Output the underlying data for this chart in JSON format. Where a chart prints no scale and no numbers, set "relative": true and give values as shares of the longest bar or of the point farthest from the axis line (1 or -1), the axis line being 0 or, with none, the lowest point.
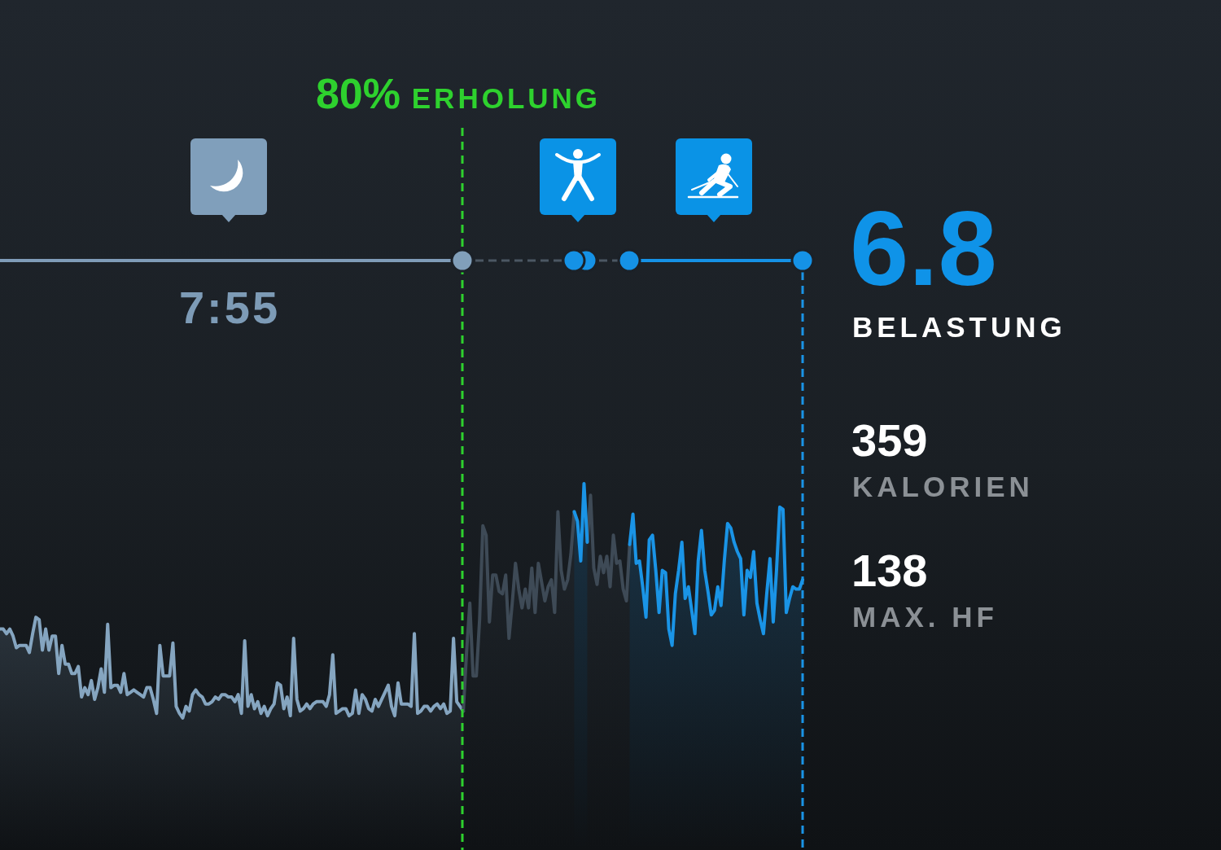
{
  "chart_data": [
    {
      "type": "area",
      "relative": true,
      "categories": [
        null,
        null,
        null,
        null,
        null,
        null,
        null,
        null,
        null,
        null,
        null,
        null,
        null,
        null,
        null,
        null,
        null,
        null,
        null,
        null,
        null,
        null,
        null,
        null,
        null,
        null,
        null,
        null,
        null,
        null,
        null,
        null,
        null,
        null,
        null,
        null,
        null,
        null,
        null,
        null,
        null,
        null,
        null,
        null,
        null,
        null,
        null,
        null,
        null,
        null,
        null,
        null,
        null,
        null,
        null,
        null,
        null,
        null,
        null,
        null,
        null,
        null,
        null,
        null,
        null,
        null,
        null,
        null,
        null,
        null,
        null,
        null,
        null,
        null,
        null,
        null,
        null,
        null,
        null,
        null,
        null,
        null,
        null,
        null,
        null,
        null,
        null,
        null,
        null,
        null,
        null,
        null,
        null,
        null,
        null,
        null,
        null,
        null,
        null,
        null,
        null,
        null,
        null,
        null,
        null,
        null,
        null,
        null,
        null,
        null,
        null,
        null,
        null,
        null,
        null,
        null,
        null,
        null,
        null,
        null,
        null,
        null,
        null,
        null,
        null,
        null,
        null,
        null,
        null,
        null,
        null,
        null,
        null,
        null,
        null,
        null,
        null,
        null,
        null,
        null,
        null,
        null,
        null,
        null,
        null,
        null,
        null,
        null,
        null,
        null,
        null,
        null,
        null,
        null,
        null,
        null,
        null,
        null,
        null,
        null,
        null,
        null,
        null,
        null,
        null,
        null,
        null,
        null,
        null,
        null,
        null,
        null,
        null,
        null,
        null,
        null,
        null,
        null,
        null,
        null,
        null,
        null,
        null,
        null,
        null,
        null,
        null,
        null,
        null,
        null,
        null,
        null,
        null,
        null,
        null,
        null,
        null,
        null,
        null,
        null,
        null,
        null,
        null,
        null,
        null,
        null,
        null,
        null,
        null,
        null,
        null,
        null,
        null,
        null,
        null,
        null,
        null,
        null,
        null,
        null,
        null,
        null,
        null,
        null,
        null,
        null,
        null,
        null,
        null,
        null,
        null,
        null,
        null,
        null,
        null,
        null,
        null,
        null,
        null,
        null,
        null,
        null,
        null,
        null,
        null,
        null,
        null
      ],
      "series": [
        {
          "color": "#85a5c0",
          "values": [
            0.38,
            0.38,
            0.36,
            0.38,
            0.35,
            0.3,
            0.31,
            0.31,
            0.31,
            0.28,
            0.36,
            0.43,
            0.42,
            0.29,
            0.38,
            0.29,
            0.35,
            0.35,
            0.19,
            0.31,
            0.23,
            0.23,
            0.19,
            0.19,
            0.22,
            0.09,
            0.13,
            0.1,
            0.16,
            0.08,
            0.13,
            0.21,
            0.11,
            0.4,
            0.13,
            0.14,
            0.14,
            0.11,
            0.19,
            0.1,
            0.11,
            0.12,
            0.11,
            0.1,
            0.09,
            0.13,
            0.13,
            0.08,
            0.02,
            0.31,
            0.18,
            0.18,
            0.18,
            0.32,
            0.05,
            0.02,
            0,
            0.05,
            0.03,
            0.1,
            0.12,
            0.1,
            0.09,
            0.06,
            0.06,
            0.07,
            0.09,
            0.08,
            0.1,
            0.1,
            0.09,
            0.09,
            0.07,
            0.1,
            0.02,
            0.33,
            0.05,
            0.1,
            0.04,
            0.07,
            0.02,
            0.05,
            0.01,
            0.04,
            0.06,
            0.15,
            0.14,
            0.04,
            0.09,
            0.01,
            0.34,
            0.08,
            0.03,
            0.04,
            0.06,
            0.04,
            0.06,
            0.07,
            0.07,
            0.07,
            0.05,
            0.1,
            0.27,
            0.02,
            0.03,
            0.04,
            0.04,
            0.01,
            0.02,
            0.12,
            0.02,
            0.1,
            0.08,
            0.04,
            0.03,
            0.08,
            0.05,
            0.08,
            0.11,
            0.14,
            0.05,
            0.01,
            0.15,
            0.06,
            0.06,
            0.06,
            0.05,
            0.36,
            0.02,
            0.03,
            0.05,
            0.05,
            0.03,
            0.05,
            0.06,
            0.04,
            0.06,
            0.02,
            0.03,
            0.34,
            0.07,
            0.05,
            0.03,
            null,
            null,
            null,
            null,
            null,
            null,
            null,
            null,
            null,
            null,
            null,
            null,
            null,
            null,
            null,
            null,
            null,
            null,
            null,
            null,
            null,
            null,
            null,
            null,
            null,
            null,
            null,
            null,
            null,
            null,
            null,
            null,
            null,
            null,
            null,
            null,
            null,
            null,
            null,
            null,
            null,
            null,
            null,
            null,
            null,
            null,
            null,
            null,
            null,
            null,
            null,
            null,
            null,
            null,
            null,
            null,
            null,
            null,
            null,
            null,
            null,
            null,
            null,
            null,
            null,
            null,
            null,
            null,
            null,
            null,
            null,
            null,
            null,
            null,
            null,
            null,
            null,
            null,
            null,
            null,
            null,
            null,
            null,
            null,
            null,
            null,
            null,
            null,
            null,
            null,
            null,
            null,
            null,
            null,
            null,
            null,
            null,
            null,
            null,
            null,
            null,
            null,
            null,
            null
          ]
        },
        {
          "color": "#3e4a56",
          "values": [
            null,
            null,
            null,
            null,
            null,
            null,
            null,
            null,
            null,
            null,
            null,
            null,
            null,
            null,
            null,
            null,
            null,
            null,
            null,
            null,
            null,
            null,
            null,
            null,
            null,
            null,
            null,
            null,
            null,
            null,
            null,
            null,
            null,
            null,
            null,
            null,
            null,
            null,
            null,
            null,
            null,
            null,
            null,
            null,
            null,
            null,
            null,
            null,
            null,
            null,
            null,
            null,
            null,
            null,
            null,
            null,
            null,
            null,
            null,
            null,
            null,
            null,
            null,
            null,
            null,
            null,
            null,
            null,
            null,
            null,
            null,
            null,
            null,
            null,
            null,
            null,
            null,
            null,
            null,
            null,
            null,
            null,
            null,
            null,
            null,
            null,
            null,
            null,
            null,
            null,
            null,
            null,
            null,
            null,
            null,
            null,
            null,
            null,
            null,
            null,
            null,
            null,
            null,
            null,
            null,
            null,
            null,
            null,
            null,
            null,
            null,
            null,
            null,
            null,
            null,
            null,
            null,
            null,
            null,
            null,
            null,
            null,
            null,
            null,
            null,
            null,
            null,
            null,
            null,
            null,
            null,
            null,
            null,
            null,
            null,
            null,
            null,
            null,
            null,
            null,
            null,
            null,
            0.03,
            0.28,
            0.49,
            0.18,
            0.18,
            0.42,
            0.82,
            0.78,
            0.41,
            0.61,
            0.61,
            0.54,
            0.53,
            0.61,
            0.34,
            0.49,
            0.66,
            0.55,
            0.47,
            0.55,
            0.47,
            0.64,
            0.45,
            0.66,
            0.58,
            0.5,
            0.56,
            0.59,
            0.45,
            0.88,
            0.63,
            0.55,
            0.59,
            0.7,
            0.88,
            null,
            null,
            null,
            null,
            null,
            null,
            null,
            null,
            null,
            null,
            null,
            null,
            null,
            null,
            null,
            null,
            null,
            null,
            null,
            null,
            null,
            null,
            null,
            null,
            null,
            null,
            null,
            null,
            null,
            null,
            null,
            null,
            null,
            null,
            null,
            null,
            null,
            null,
            null,
            null,
            null,
            null,
            null,
            null,
            null,
            null,
            null,
            null,
            null,
            null,
            null,
            null,
            null,
            null,
            null,
            null,
            null,
            null,
            null,
            null,
            null,
            null,
            null,
            null,
            null,
            null,
            null,
            null,
            null,
            null
          ]
        },
        {
          "color": "#3e4a56",
          "values": [
            null,
            null,
            null,
            null,
            null,
            null,
            null,
            null,
            null,
            null,
            null,
            null,
            null,
            null,
            null,
            null,
            null,
            null,
            null,
            null,
            null,
            null,
            null,
            null,
            null,
            null,
            null,
            null,
            null,
            null,
            null,
            null,
            null,
            null,
            null,
            null,
            null,
            null,
            null,
            null,
            null,
            null,
            null,
            null,
            null,
            null,
            null,
            null,
            null,
            null,
            null,
            null,
            null,
            null,
            null,
            null,
            null,
            null,
            null,
            null,
            null,
            null,
            null,
            null,
            null,
            null,
            null,
            null,
            null,
            null,
            null,
            null,
            null,
            null,
            null,
            null,
            null,
            null,
            null,
            null,
            null,
            null,
            null,
            null,
            null,
            null,
            null,
            null,
            null,
            null,
            null,
            null,
            null,
            null,
            null,
            null,
            null,
            null,
            null,
            null,
            null,
            null,
            null,
            null,
            null,
            null,
            null,
            null,
            null,
            null,
            null,
            null,
            null,
            null,
            null,
            null,
            null,
            null,
            null,
            null,
            null,
            null,
            null,
            null,
            null,
            null,
            null,
            null,
            null,
            null,
            null,
            null,
            null,
            null,
            null,
            null,
            null,
            null,
            null,
            null,
            null,
            null,
            null,
            null,
            null,
            null,
            null,
            null,
            null,
            null,
            null,
            null,
            null,
            null,
            null,
            null,
            null,
            null,
            null,
            null,
            null,
            null,
            null,
            null,
            null,
            null,
            null,
            null,
            null,
            null,
            null,
            null,
            null,
            null,
            null,
            null,
            null,
            null,
            null,
            null,
            0.75,
            0.95,
            0.64,
            0.57,
            0.69,
            0.62,
            0.69,
            0.56,
            0.78,
            0.66,
            0.67,
            0.55,
            0.5,
            0.74,
            null,
            null,
            null,
            null,
            null,
            null,
            null,
            null,
            null,
            null,
            null,
            null,
            null,
            null,
            null,
            null,
            null,
            null,
            null,
            null,
            null,
            null,
            null,
            null,
            null,
            null,
            null,
            null,
            null,
            null,
            null,
            null,
            null,
            null,
            null,
            null,
            null,
            null,
            null,
            null,
            null,
            null,
            null,
            null,
            null,
            null,
            null,
            null,
            null,
            null,
            null,
            null,
            null
          ]
        },
        {
          "color": "#1a94e6",
          "values": [
            null,
            null,
            null,
            null,
            null,
            null,
            null,
            null,
            null,
            null,
            null,
            null,
            null,
            null,
            null,
            null,
            null,
            null,
            null,
            null,
            null,
            null,
            null,
            null,
            null,
            null,
            null,
            null,
            null,
            null,
            null,
            null,
            null,
            null,
            null,
            null,
            null,
            null,
            null,
            null,
            null,
            null,
            null,
            null,
            null,
            null,
            null,
            null,
            null,
            null,
            null,
            null,
            null,
            null,
            null,
            null,
            null,
            null,
            null,
            null,
            null,
            null,
            null,
            null,
            null,
            null,
            null,
            null,
            null,
            null,
            null,
            null,
            null,
            null,
            null,
            null,
            null,
            null,
            null,
            null,
            null,
            null,
            null,
            null,
            null,
            null,
            null,
            null,
            null,
            null,
            null,
            null,
            null,
            null,
            null,
            null,
            null,
            null,
            null,
            null,
            null,
            null,
            null,
            null,
            null,
            null,
            null,
            null,
            null,
            null,
            null,
            null,
            null,
            null,
            null,
            null,
            null,
            null,
            null,
            null,
            null,
            null,
            null,
            null,
            null,
            null,
            null,
            null,
            null,
            null,
            null,
            null,
            null,
            null,
            null,
            null,
            null,
            null,
            null,
            null,
            null,
            null,
            null,
            null,
            null,
            null,
            null,
            null,
            null,
            null,
            null,
            null,
            null,
            null,
            null,
            null,
            null,
            null,
            null,
            null,
            null,
            null,
            null,
            null,
            null,
            null,
            null,
            null,
            null,
            null,
            null,
            null,
            null,
            null,
            null,
            null,
            0.88,
            0.84,
            0.67,
            1,
            0.75,
            null,
            null,
            null,
            null,
            null,
            null,
            null,
            null,
            null,
            null,
            null,
            null,
            null,
            null,
            null,
            null,
            null,
            null,
            null,
            null,
            null,
            null,
            null,
            null,
            null,
            null,
            null,
            null,
            null,
            null,
            null,
            null,
            null,
            null,
            null,
            null,
            null,
            null,
            null,
            null,
            null,
            null,
            null,
            null,
            null,
            null,
            null,
            null,
            null,
            null,
            null,
            null,
            null,
            null,
            null,
            null,
            null,
            null,
            null,
            null,
            null,
            null,
            null,
            null,
            null,
            null
          ]
        },
        {
          "color": "#1a94e6",
          "values": [
            null,
            null,
            null,
            null,
            null,
            null,
            null,
            null,
            null,
            null,
            null,
            null,
            null,
            null,
            null,
            null,
            null,
            null,
            null,
            null,
            null,
            null,
            null,
            null,
            null,
            null,
            null,
            null,
            null,
            null,
            null,
            null,
            null,
            null,
            null,
            null,
            null,
            null,
            null,
            null,
            null,
            null,
            null,
            null,
            null,
            null,
            null,
            null,
            null,
            null,
            null,
            null,
            null,
            null,
            null,
            null,
            null,
            null,
            null,
            null,
            null,
            null,
            null,
            null,
            null,
            null,
            null,
            null,
            null,
            null,
            null,
            null,
            null,
            null,
            null,
            null,
            null,
            null,
            null,
            null,
            null,
            null,
            null,
            null,
            null,
            null,
            null,
            null,
            null,
            null,
            null,
            null,
            null,
            null,
            null,
            null,
            null,
            null,
            null,
            null,
            null,
            null,
            null,
            null,
            null,
            null,
            null,
            null,
            null,
            null,
            null,
            null,
            null,
            null,
            null,
            null,
            null,
            null,
            null,
            null,
            null,
            null,
            null,
            null,
            null,
            null,
            null,
            null,
            null,
            null,
            null,
            null,
            null,
            null,
            null,
            null,
            null,
            null,
            null,
            null,
            null,
            null,
            null,
            null,
            null,
            null,
            null,
            null,
            null,
            null,
            null,
            null,
            null,
            null,
            null,
            null,
            null,
            null,
            null,
            null,
            null,
            null,
            null,
            null,
            null,
            null,
            null,
            null,
            null,
            null,
            null,
            null,
            null,
            null,
            null,
            null,
            null,
            null,
            null,
            null,
            null,
            null,
            null,
            null,
            null,
            null,
            null,
            null,
            null,
            null,
            null,
            null,
            null,
            0.74,
            0.87,
            0.66,
            0.67,
            0.56,
            0.43,
            0.76,
            0.78,
            0.63,
            0.45,
            0.63,
            0.62,
            0.38,
            0.31,
            0.53,
            0.63,
            0.75,
            0.51,
            0.56,
            0.46,
            0.36,
            0.67,
            0.8,
            0.63,
            0.54,
            0.44,
            0.46,
            0.56,
            0.48,
            0.67,
            0.83,
            0.81,
            0.75,
            0.71,
            0.68,
            0.44,
            0.63,
            0.6,
            0.71,
            0.49,
            0.42,
            0.36,
            0.53,
            0.68,
            0.41,
            0.63,
            0.9,
            0.89,
            0.45,
            0.51,
            0.56,
            0.55,
            0.55,
            0.59
          ]
        }
      ],
      "annotations": [
        "80% ERHOLUNG",
        "7:55"
      ]
    },
    {
      "type": "other",
      "annotations": [
        "6.8",
        "BELASTUNG",
        "359",
        "KALORIEN",
        "138",
        "MAX. HF"
      ]
    }
  ]
}
